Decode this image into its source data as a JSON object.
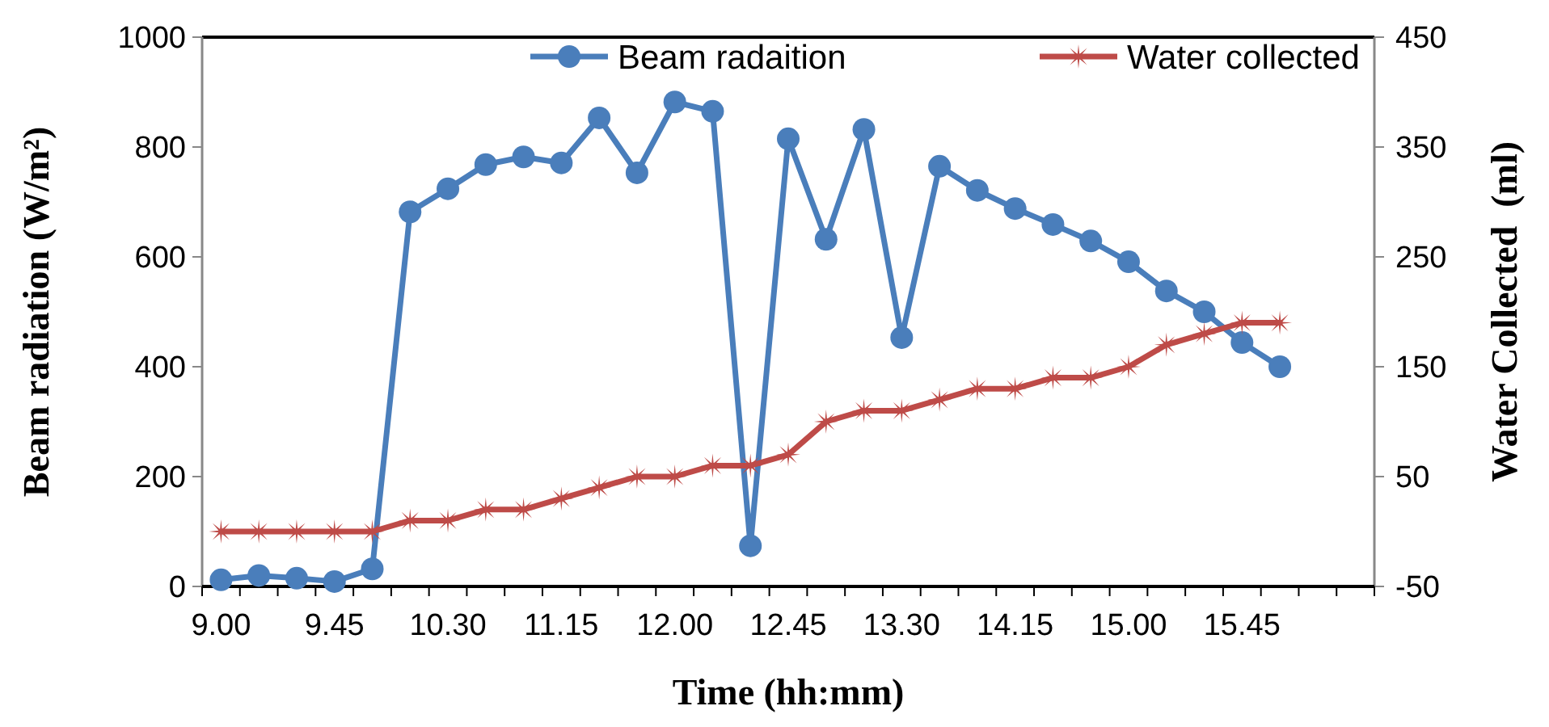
{
  "chart_data": {
    "type": "line",
    "xlabel": "Time (hh:mm)",
    "ylabel": "Beam radiation (W/m²)",
    "y2label": "Water Collected  (ml)",
    "categories": [
      "9.00",
      null,
      null,
      "9.45",
      null,
      null,
      "10.30",
      null,
      null,
      "11.15",
      null,
      null,
      "12.00",
      null,
      null,
      "12.45",
      null,
      null,
      "13.30",
      null,
      null,
      "14.15",
      null,
      null,
      "15.00",
      null,
      null,
      "15.45",
      null,
      null,
      null
    ],
    "series": [
      {
        "name": "Beam radaition",
        "color": "#4a7ebb",
        "marker": "circle",
        "values": [
          12,
          20,
          15,
          9,
          32,
          682,
          724,
          768,
          782,
          771,
          853,
          753,
          882,
          865,
          74,
          815,
          632,
          832,
          453,
          765,
          721,
          688,
          659,
          629,
          591,
          538,
          500,
          444,
          400,
          null,
          null
        ]
      },
      {
        "name": "Water collected",
        "color": "#be4b48",
        "marker": "star",
        "axis": "y2",
        "values": [
          0,
          0,
          0,
          0,
          0,
          10,
          10,
          20,
          20,
          30,
          40,
          50,
          50,
          60,
          60,
          70,
          100,
          110,
          110,
          120,
          130,
          130,
          140,
          140,
          150,
          170,
          180,
          190,
          190,
          null,
          null
        ]
      }
    ],
    "ylim": [
      0,
      1000
    ],
    "yticks": [
      0,
      200,
      400,
      600,
      800,
      1000
    ],
    "y2lim": [
      -50,
      450
    ],
    "y2ticks": [
      -50,
      50,
      150,
      250,
      350,
      450
    ],
    "legend": "top",
    "grid": false,
    "line_style": "solid"
  }
}
